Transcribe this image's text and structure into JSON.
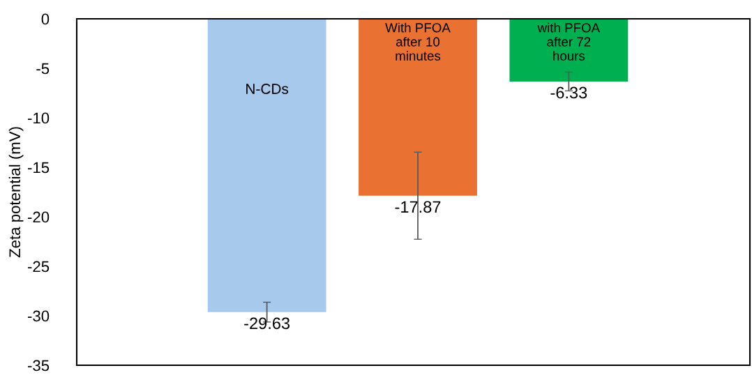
{
  "chart_data": {
    "type": "bar",
    "ylabel": "Zeta potential (mV)",
    "categories": [
      "N-CDs",
      "With PFOA\nafter 10\nminutes",
      "with PFOA\nafter 72\nhours"
    ],
    "values": [
      -29.63,
      -17.87,
      -6.33
    ],
    "colors": [
      "#a6c9ec",
      "#e97132",
      "#00b050"
    ],
    "errors": [
      1.0,
      4.4,
      0.95
    ],
    "value_labels": [
      "-29.63",
      "-17.87",
      "-6.33"
    ],
    "ylim": [
      -35,
      0
    ],
    "yticks": [
      {
        "value": -35,
        "label": "-35"
      },
      {
        "value": -30,
        "label": "-30"
      },
      {
        "value": -25,
        "label": "-25"
      },
      {
        "value": -20,
        "label": "-20"
      },
      {
        "value": -15,
        "label": "-15"
      },
      {
        "value": -10,
        "label": "-10"
      },
      {
        "value": -5,
        "label": "-5"
      },
      {
        "value": 0,
        "label": "0"
      }
    ],
    "grid": false,
    "legend": false
  }
}
